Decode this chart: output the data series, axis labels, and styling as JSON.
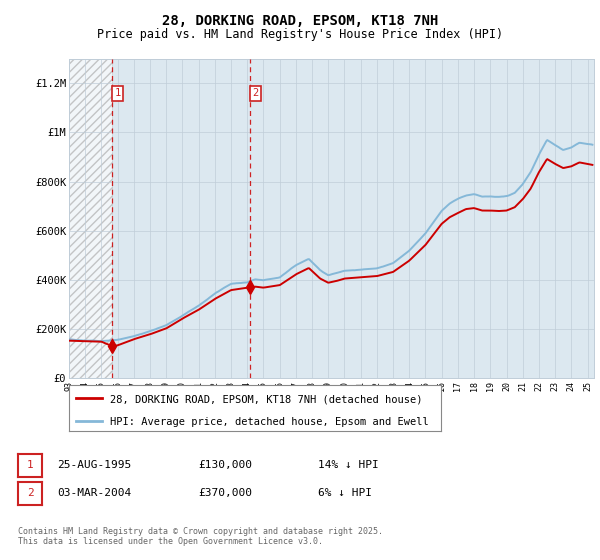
{
  "title": "28, DORKING ROAD, EPSOM, KT18 7NH",
  "subtitle": "Price paid vs. HM Land Registry's House Price Index (HPI)",
  "footer": "Contains HM Land Registry data © Crown copyright and database right 2025.\nThis data is licensed under the Open Government Licence v3.0.",
  "legend_line1": "28, DORKING ROAD, EPSOM, KT18 7NH (detached house)",
  "legend_line2": "HPI: Average price, detached house, Epsom and Ewell",
  "annotation1_label": "1",
  "annotation1_date": "25-AUG-1995",
  "annotation1_price": "£130,000",
  "annotation1_hpi": "14% ↓ HPI",
  "annotation2_label": "2",
  "annotation2_date": "03-MAR-2004",
  "annotation2_price": "£370,000",
  "annotation2_hpi": "6% ↓ HPI",
  "ylim": [
    0,
    1300000
  ],
  "yticks": [
    0,
    200000,
    400000,
    600000,
    800000,
    1000000,
    1200000
  ],
  "ytick_labels": [
    "£0",
    "£200K",
    "£400K",
    "£600K",
    "£800K",
    "£1M",
    "£1.2M"
  ],
  "xmin": 1993,
  "xmax": 2025.4,
  "hatch_end_year": 1995.66,
  "sale1_year": 1995.65,
  "sale1_price": 130000,
  "sale2_year": 2004.17,
  "sale2_price": 370000,
  "red_color": "#cc0000",
  "blue_color": "#85b8d8",
  "hatch_color": "#aaaaaa",
  "bg_color": "#dce8f0",
  "grid_color": "#c0cdd8",
  "box_color": "#cc2222",
  "ann_box_color": "#cc2222",
  "legend_border_color": "#888888",
  "title_fontsize": 10,
  "subtitle_fontsize": 8.5,
  "ytick_fontsize": 7.5,
  "xtick_fontsize": 6,
  "legend_fontsize": 7.5,
  "ann_fontsize": 8,
  "footer_fontsize": 6
}
